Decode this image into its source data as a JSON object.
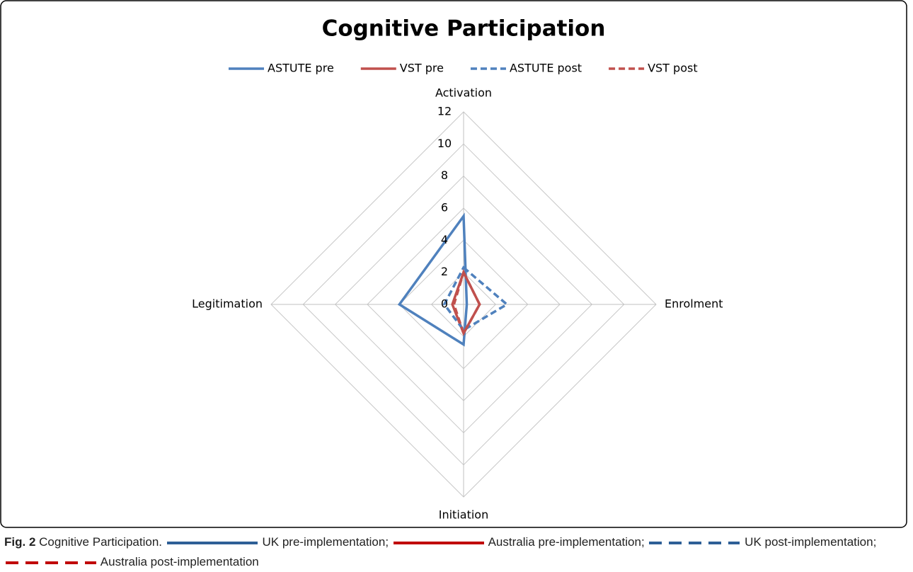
{
  "chart_data": {
    "type": "radar",
    "title": "Cognitive Participation",
    "categories": [
      "Activation",
      "Enrolment",
      "Initiation",
      "Legitimation"
    ],
    "series": [
      {
        "name": "ASTUTE pre",
        "color": "#4f81bd",
        "dash": false,
        "values": [
          5.5,
          0.2,
          2.5,
          4
        ]
      },
      {
        "name": "VST pre",
        "color": "#c0504d",
        "dash": false,
        "values": [
          2,
          1,
          1.8,
          0.7
        ]
      },
      {
        "name": "ASTUTE post",
        "color": "#4f81bd",
        "dash": true,
        "values": [
          2.3,
          2.7,
          1.6,
          1.2
        ]
      },
      {
        "name": "VST post",
        "color": "#c0504d",
        "dash": true,
        "values": [
          2,
          1,
          1.8,
          0.6
        ]
      }
    ],
    "ylim": [
      0,
      12
    ],
    "yticks": [
      0,
      2,
      4,
      6,
      8,
      10,
      12
    ],
    "grid": true,
    "legend": "top"
  },
  "caption": {
    "label": "Fig. 2",
    "title": "Cognitive Participation.",
    "items": [
      "UK pre-implementation;",
      "Australia pre-implementation;",
      "UK post-implementation;",
      "Australia post-implementation"
    ]
  }
}
